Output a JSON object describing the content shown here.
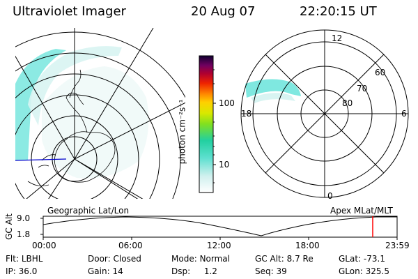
{
  "header": {
    "title": "Ultraviolet Imager",
    "date": "20 Aug 07",
    "time": "22:20:15 UT"
  },
  "colorbar": {
    "label": "photon cm⁻²s⁻¹",
    "ticks": [
      "100",
      "10"
    ]
  },
  "geo_panel": {
    "label": "Geographic Lat/Lon"
  },
  "apex_panel": {
    "label": "Apex MLat/MLT",
    "mlt_labels": [
      "12",
      "18",
      "6",
      "0"
    ],
    "mlat_labels": [
      "60",
      "70",
      "80"
    ]
  },
  "altitude_plot": {
    "ylabel": "GC Alt",
    "yticks": [
      "9.0",
      "1.8"
    ],
    "xticks": [
      "00:00",
      "06:00",
      "12:00",
      "18:00",
      "23:59"
    ]
  },
  "status": {
    "flt_label": "Flt:",
    "flt_value": "LBHL",
    "ip_label": "IP:",
    "ip_value": "36.0",
    "door_label": "Door:",
    "door_value": "Closed",
    "gain_label": "Gain:",
    "gain_value": "14",
    "mode_label": "Mode:",
    "mode_value": "Normal",
    "dsp_label": "Dsp:",
    "dsp_value": "1.2",
    "gcalt_label": "GC Alt:",
    "gcalt_value": "8.7 Re",
    "seq_label": "Seq:",
    "seq_value": "39",
    "glat_label": "GLat:",
    "glat_value": "-73.1",
    "glon_label": "GLon:",
    "glon_value": "325.5"
  },
  "colors": {
    "aurora": "#7fe8e0",
    "aurora_dim": "#d8f4f2",
    "time_marker": "#ff0000",
    "coast_blue": "#0000cc"
  }
}
